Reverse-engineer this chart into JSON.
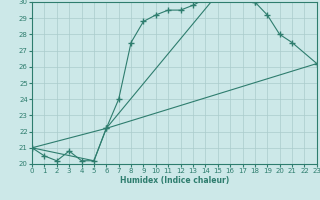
{
  "xlabel": "Humidex (Indice chaleur)",
  "background_color": "#cce8e8",
  "line_color": "#2e7d6e",
  "grid_color": "#aacccc",
  "xlim": [
    0,
    23
  ],
  "ylim": [
    20,
    30
  ],
  "xticks": [
    0,
    1,
    2,
    3,
    4,
    5,
    6,
    7,
    8,
    9,
    10,
    11,
    12,
    13,
    14,
    15,
    16,
    17,
    18,
    19,
    20,
    21,
    22,
    23
  ],
  "yticks": [
    20,
    21,
    22,
    23,
    24,
    25,
    26,
    27,
    28,
    29,
    30
  ],
  "series1_x": [
    0,
    1,
    2,
    3,
    4,
    5,
    6,
    7,
    8,
    9,
    10,
    11,
    12,
    13,
    14,
    15,
    16,
    17,
    18
  ],
  "series1_y": [
    21,
    20.5,
    20.2,
    20.8,
    20.2,
    20.2,
    22.2,
    24.0,
    27.5,
    28.8,
    29.2,
    29.5,
    29.5,
    29.8,
    30.2,
    30.5,
    30.4,
    30.2,
    30.0
  ],
  "series2_x": [
    0,
    6,
    15,
    16,
    17,
    18,
    19,
    20,
    21,
    23
  ],
  "series2_y": [
    21,
    22.2,
    30.5,
    30.4,
    30.2,
    30.0,
    29.2,
    28.0,
    27.5,
    26.2
  ],
  "series3_x": [
    0,
    5,
    6,
    23
  ],
  "series3_y": [
    21,
    20.2,
    22.2,
    26.2
  ]
}
